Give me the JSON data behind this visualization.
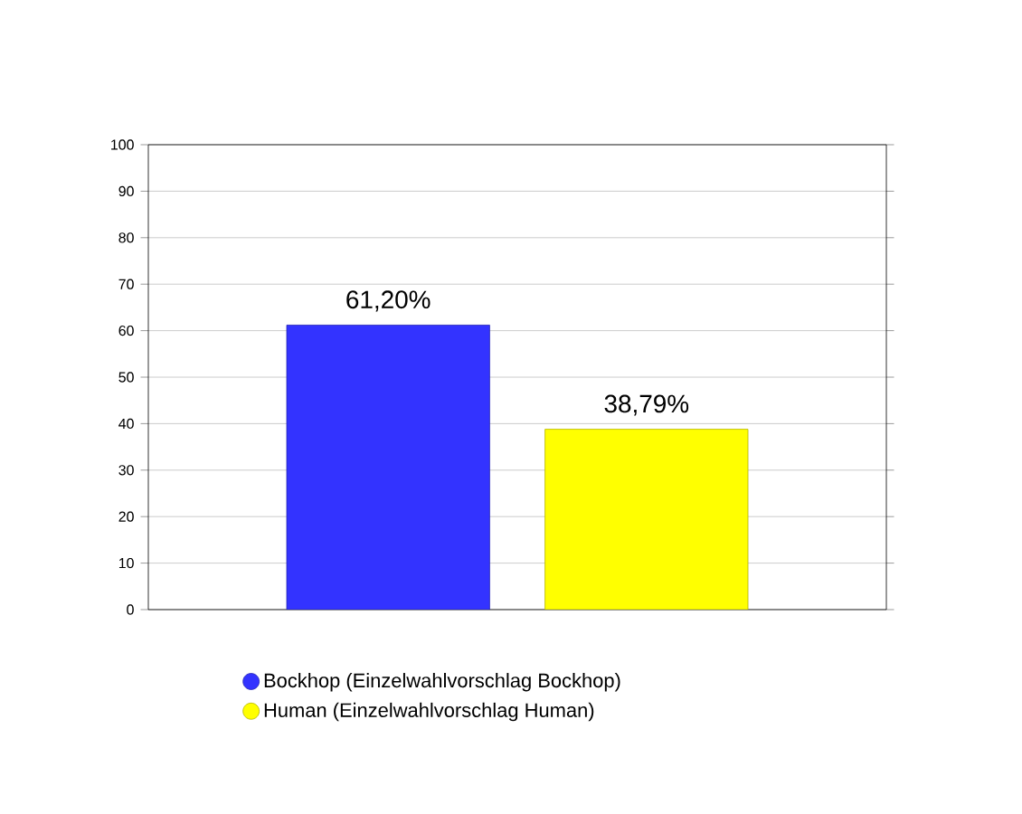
{
  "chart_data": {
    "type": "bar",
    "categories": [
      null
    ],
    "series": [
      {
        "name": "Bockhop (Einzelwahlvorschlag Bockhop)",
        "color": "#3333ff",
        "values": [
          61.2
        ],
        "value_labels": [
          "61,20%"
        ]
      },
      {
        "name": "Human (Einzelwahlvorschlag Human)",
        "color": "#ffff00",
        "values": [
          38.79
        ],
        "value_labels": [
          "38,79%"
        ]
      }
    ],
    "ylim": [
      0,
      100
    ],
    "yticks": [
      0,
      10,
      20,
      30,
      40,
      50,
      60,
      70,
      80,
      90,
      100
    ],
    "grid": "y",
    "legend": "bottom"
  }
}
